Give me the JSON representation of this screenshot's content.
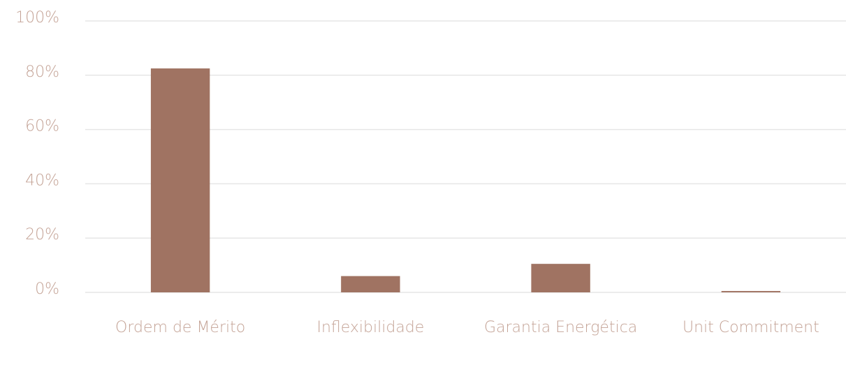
{
  "chart_data": {
    "type": "bar",
    "categories": [
      "Ordem de Mérito",
      "Inflexibilidade",
      "Garantia Energética",
      "Unit Commitment"
    ],
    "values": [
      82.5,
      6,
      10.5,
      0.5
    ],
    "color": "#a07362",
    "ylim": [
      0,
      100
    ],
    "yticks": [
      {
        "value": 0,
        "label": "0%"
      },
      {
        "value": 20,
        "label": "20%"
      },
      {
        "value": 40,
        "label": "40%"
      },
      {
        "value": 60,
        "label": "60%"
      },
      {
        "value": 80,
        "label": "80%"
      },
      {
        "value": 100,
        "label": "100%"
      }
    ],
    "grid": true
  }
}
